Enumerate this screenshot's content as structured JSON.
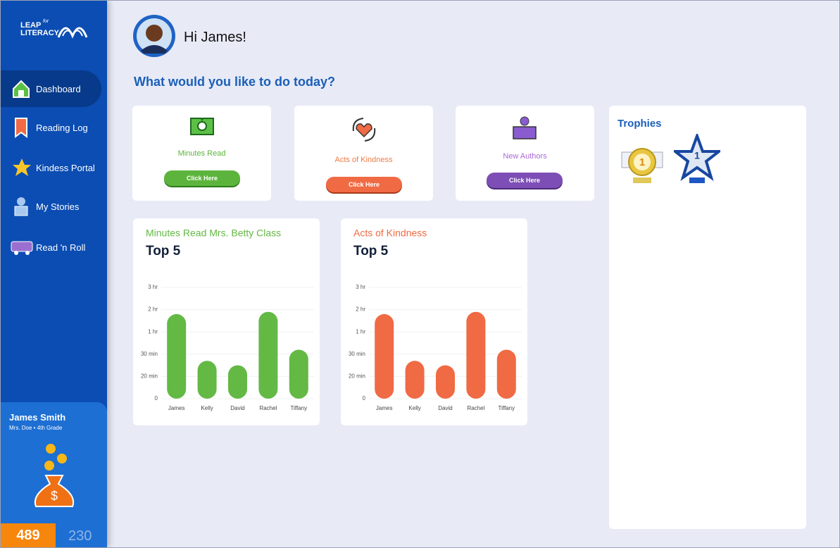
{
  "logo": {
    "line1": "LEAP",
    "small": "for",
    "line2": "LITERACY"
  },
  "nav": [
    {
      "label": "Dashboard"
    },
    {
      "label": "Reading Log"
    },
    {
      "label": "Kindess Portal"
    },
    {
      "label": "My Stories"
    },
    {
      "label": "Read 'n Roll"
    }
  ],
  "profile": {
    "name": "James Smith",
    "detail": "Mrs. Doe • 4th Grade",
    "points": "489",
    "secondary": "230"
  },
  "header": {
    "greeting": "Hi James!",
    "prompt": "What would you like to do today?"
  },
  "cards": [
    {
      "label": "Minutes Read",
      "button": "Click Here"
    },
    {
      "label": "Acts of Kindness",
      "button": "Click Here"
    },
    {
      "label": "New Authors",
      "button": "Click Here"
    }
  ],
  "trophies": {
    "title": "Trophies",
    "items": [
      {
        "label": "1"
      },
      {
        "label": "1"
      }
    ]
  },
  "chart_data": [
    {
      "type": "bar",
      "title": "Minutes Read Mrs. Betty Class",
      "subtitle": "Top 5",
      "categories": [
        "James",
        "Kelly",
        "David",
        "Rachel",
        "Tiffany"
      ],
      "values": [
        3.8,
        1.7,
        1.5,
        3.9,
        2.2
      ],
      "color": "#63b944",
      "ylim": [
        0,
        5
      ],
      "yticks": [
        0,
        {
          "value": 1,
          "label": "20 min"
        },
        {
          "value": 2,
          "label": "30 min"
        },
        {
          "value": 3,
          "label": "1 hr"
        },
        {
          "value": 4,
          "label": "2 hr"
        },
        {
          "value": 5,
          "label": "3 hr"
        }
      ],
      "grid": true
    },
    {
      "type": "bar",
      "title": "Acts of Kindness",
      "subtitle": "Top 5",
      "categories": [
        "James",
        "Kelly",
        "David",
        "Rachel",
        "Tiffany"
      ],
      "values": [
        3.8,
        1.7,
        1.5,
        3.9,
        2.2
      ],
      "color": "#f06a43",
      "ylim": [
        0,
        5
      ],
      "yticks": [
        0,
        {
          "value": 1,
          "label": "20 min"
        },
        {
          "value": 2,
          "label": "30 min"
        },
        {
          "value": 3,
          "label": "1 hr"
        },
        {
          "value": 4,
          "label": "2 hr"
        },
        {
          "value": 5,
          "label": "3 hr"
        }
      ],
      "grid": true
    }
  ]
}
